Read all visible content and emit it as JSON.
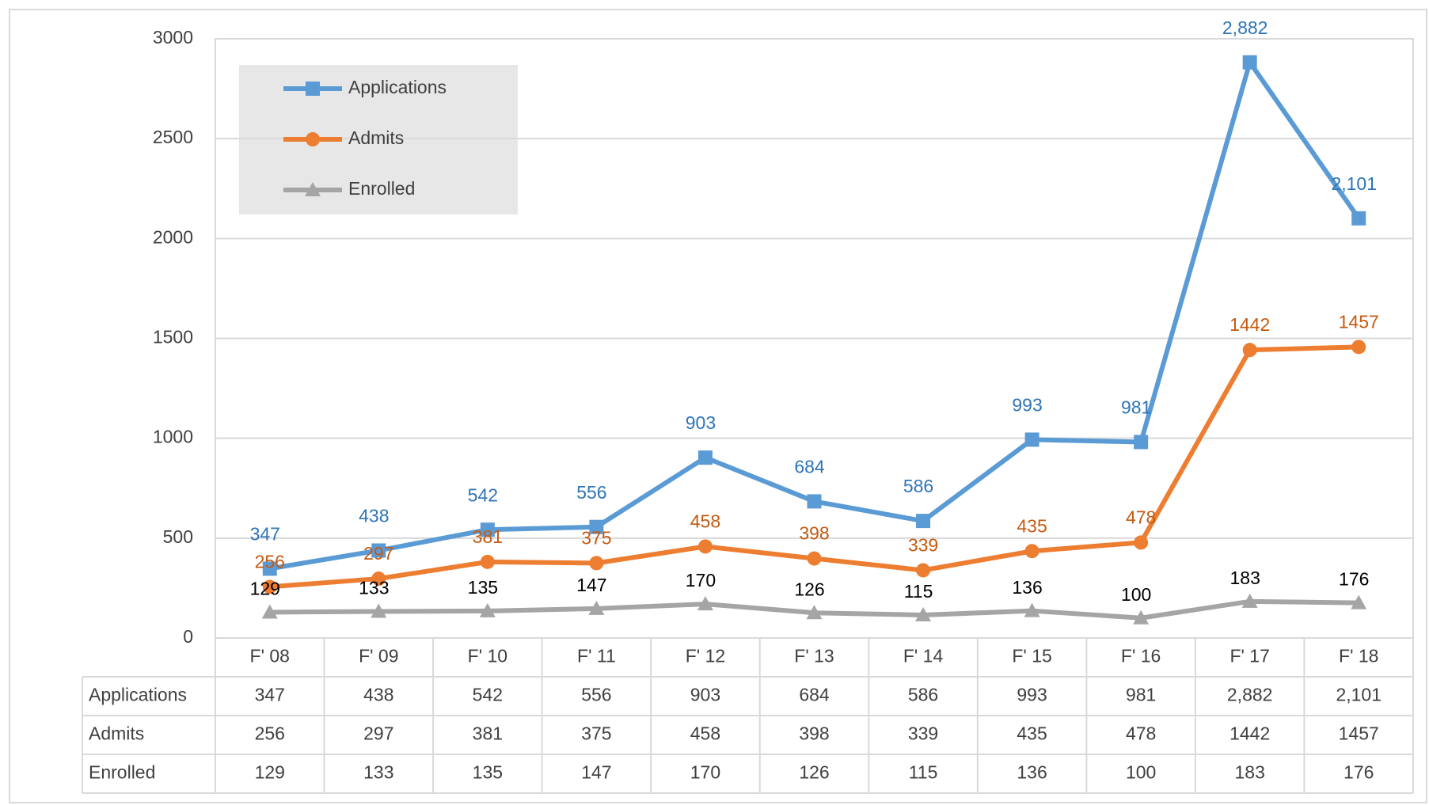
{
  "chart_data": {
    "type": "line",
    "categories": [
      "F' 08",
      "F' 09",
      "F' 10",
      "F' 11",
      "F' 12",
      "F' 13",
      "F' 14",
      "F' 15",
      "F' 16",
      "F' 17",
      "F' 18"
    ],
    "series": [
      {
        "name": "Applications",
        "color": "#5b9bd5",
        "label_color": "#2e75b6",
        "marker": "square",
        "values": [
          347,
          438,
          542,
          556,
          903,
          684,
          586,
          993,
          981,
          2882,
          2101
        ],
        "value_labels": [
          "347",
          "438",
          "542",
          "556",
          "903",
          "684",
          "586",
          "993",
          "981",
          "2,882",
          "2,101"
        ]
      },
      {
        "name": "Admits",
        "color": "#ed7d31",
        "label_color": "#c55a11",
        "marker": "circle",
        "values": [
          256,
          297,
          381,
          375,
          458,
          398,
          339,
          435,
          478,
          1442,
          1457
        ]
      },
      {
        "name": "Enrolled",
        "color": "#a5a5a5",
        "label_color": "#000000",
        "marker": "triangle",
        "values": [
          129,
          133,
          135,
          147,
          170,
          126,
          115,
          136,
          100,
          183,
          176
        ]
      }
    ],
    "ylim": [
      0,
      3000
    ],
    "yticks": [
      0,
      500,
      1000,
      1500,
      2000,
      2500,
      3000
    ],
    "grid": true,
    "legend": "top-left",
    "data_table": true
  }
}
